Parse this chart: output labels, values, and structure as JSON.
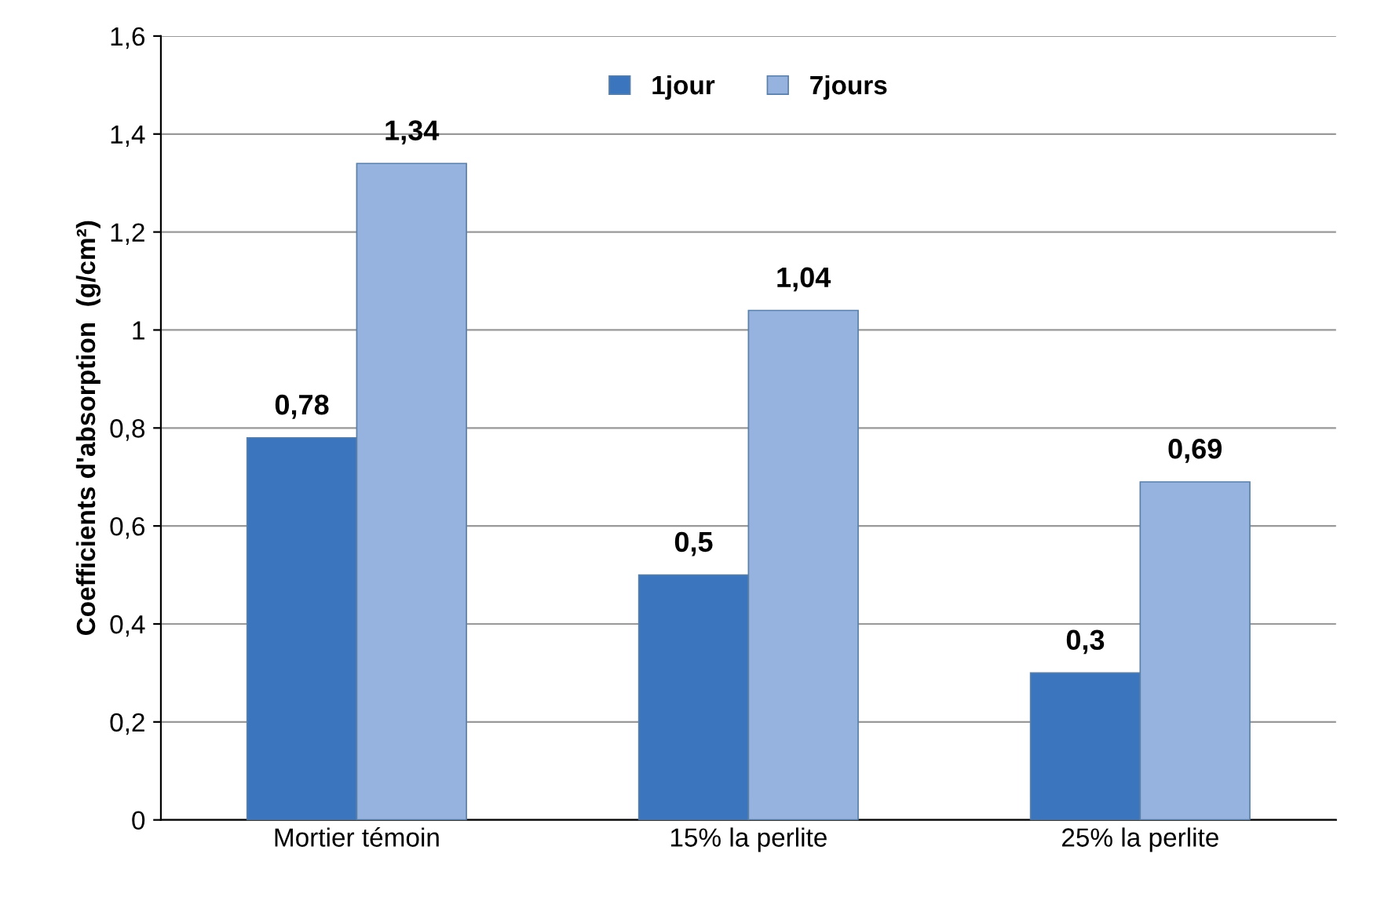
{
  "chart_data": {
    "type": "bar",
    "ylabel": "Coefficients d'absorption  (g/cm²)",
    "categories": [
      "Mortier témoin",
      "15% la perlite",
      "25% la perlite"
    ],
    "series": [
      {
        "name": "1jour",
        "color": "#3a75bd",
        "values": [
          0.78,
          0.5,
          0.3
        ],
        "value_labels": [
          "0,78",
          "0,5",
          "0,3"
        ]
      },
      {
        "name": "7jours",
        "color": "#95b3de",
        "values": [
          1.34,
          1.04,
          0.69
        ],
        "value_labels": [
          "1,34",
          "1,04",
          "0,69"
        ]
      }
    ],
    "ylim": [
      0,
      1.6
    ],
    "yticks": [
      0,
      {
        "value": 0.2,
        "label": "0,2"
      },
      {
        "value": 0.4,
        "label": "0,4"
      },
      {
        "value": 0.6,
        "label": "0,6"
      },
      {
        "value": 0.8,
        "label": "0,8"
      },
      1,
      {
        "value": 1.2,
        "label": "1,2"
      },
      {
        "value": 1.4,
        "label": "1,4"
      },
      {
        "value": 1.6,
        "label": "1,6"
      }
    ],
    "grid": "y",
    "legend": "top"
  }
}
